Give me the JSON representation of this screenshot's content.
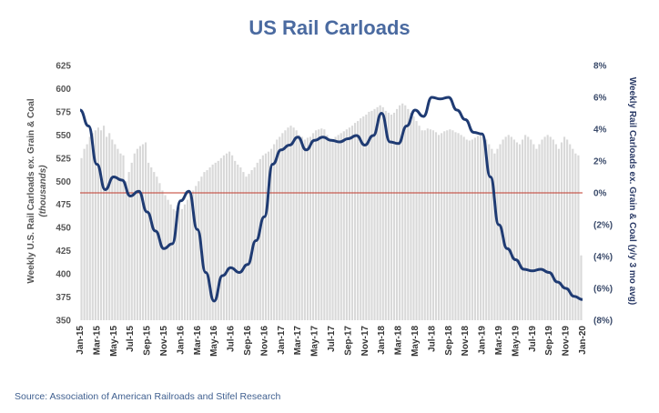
{
  "chart_data": {
    "type": "bar+line",
    "title": "US Rail Carloads",
    "source": "Source: Association of American Railroads and Stifel Research",
    "ylabel_left_line1": "Weekly U.S. Rail Carloads ex. Grain & Coal",
    "ylabel_left_line2": "(thousands)",
    "ylabel_right": "Weekly Rail Carloads ex. Grain & Coal (y/y 3 mo avg)",
    "ylim_left": [
      350,
      625
    ],
    "ylim_right": [
      -8,
      8
    ],
    "yticks_left": [
      "625",
      "600",
      "575",
      "550",
      "525",
      "500",
      "475",
      "450",
      "425",
      "400",
      "375",
      "350"
    ],
    "yticks_right": [
      "8%",
      "6%",
      "4%",
      "2%",
      "0%",
      "(2%)",
      "(4%)",
      "(6%)",
      "(8%)"
    ],
    "x_start": "2015-01",
    "x_end": "2020-01",
    "xticks": [
      "Jan-15",
      "Mar-15",
      "May-15",
      "Jul-15",
      "Sep-15",
      "Nov-15",
      "Jan-16",
      "Mar-16",
      "May-16",
      "Jul-16",
      "Sep-16",
      "Nov-16",
      "Jan-17",
      "Mar-17",
      "May-17",
      "Jul-17",
      "Sep-17",
      "Nov-17",
      "Jan-18",
      "Mar-18",
      "May-18",
      "Jul-18",
      "Sep-18",
      "Nov-18",
      "Jan-19",
      "Mar-19",
      "May-19",
      "Jul-19",
      "Sep-19",
      "Nov-19",
      "Jan-20"
    ],
    "zero_line": 0,
    "grid": false,
    "colors": {
      "bars": "#d9d9d9",
      "line": "#1f3b73",
      "zero_line": "#c0392b",
      "title": "#4a6aa0"
    },
    "series": [
      {
        "name": "Weekly U.S. Rail Carloads ex. Grain & Coal",
        "axis": "left",
        "kind": "bar",
        "values": [
          525,
          535,
          540,
          548,
          552,
          555,
          558,
          555,
          560,
          548,
          552,
          545,
          540,
          535,
          530,
          528,
          500,
          510,
          520,
          530,
          535,
          538,
          540,
          542,
          520,
          515,
          510,
          505,
          498,
          490,
          485,
          480,
          475,
          470,
          468,
          472,
          470,
          475,
          480,
          485,
          490,
          495,
          500,
          505,
          510,
          512,
          515,
          518,
          520,
          522,
          525,
          528,
          530,
          532,
          528,
          522,
          518,
          515,
          510,
          505,
          508,
          512,
          515,
          520,
          524,
          528,
          530,
          532,
          535,
          540,
          545,
          548,
          552,
          555,
          558,
          560,
          558,
          555,
          550,
          548,
          545,
          547,
          548,
          552,
          555,
          556,
          557,
          556,
          550,
          545,
          545,
          548,
          550,
          552,
          554,
          556,
          558,
          560,
          563,
          565,
          568,
          570,
          572,
          575,
          576,
          578,
          580,
          582,
          580,
          576,
          574,
          572,
          574,
          578,
          582,
          584,
          582,
          578,
          574,
          570,
          565,
          560,
          555,
          555,
          557,
          556,
          555,
          553,
          550,
          552,
          554,
          555,
          556,
          555,
          553,
          552,
          550,
          548,
          545,
          544,
          545,
          547,
          549,
          550,
          548,
          545,
          540,
          535,
          530,
          535,
          540,
          545,
          548,
          550,
          548,
          545,
          542,
          540,
          545,
          550,
          548,
          545,
          540,
          535,
          540,
          545,
          548,
          550,
          548,
          545,
          540,
          535,
          542,
          548,
          545,
          540,
          535,
          530,
          528,
          420
        ]
      },
      {
        "name": "Weekly Rail Carloads ex. Grain & Coal (y/y 3 mo avg)",
        "axis": "right",
        "kind": "line",
        "x": [
          "2015-01",
          "2015-02",
          "2015-03",
          "2015-04",
          "2015-05",
          "2015-06",
          "2015-07",
          "2015-08",
          "2015-09",
          "2015-10",
          "2015-11",
          "2015-12",
          "2016-01",
          "2016-02",
          "2016-03",
          "2016-04",
          "2016-05",
          "2016-06",
          "2016-07",
          "2016-08",
          "2016-09",
          "2016-10",
          "2016-11",
          "2016-12",
          "2017-01",
          "2017-02",
          "2017-03",
          "2017-04",
          "2017-05",
          "2017-06",
          "2017-07",
          "2017-08",
          "2017-09",
          "2017-10",
          "2017-11",
          "2017-12",
          "2018-01",
          "2018-02",
          "2018-03",
          "2018-04",
          "2018-05",
          "2018-06",
          "2018-07",
          "2018-08",
          "2018-09",
          "2018-10",
          "2018-11",
          "2018-12",
          "2019-01",
          "2019-02",
          "2019-03",
          "2019-04",
          "2019-05",
          "2019-06",
          "2019-07",
          "2019-08",
          "2019-09",
          "2019-10",
          "2019-11",
          "2019-12",
          "2020-01"
        ],
        "values": [
          5.2,
          4.2,
          1.8,
          0.2,
          1.0,
          0.8,
          -0.2,
          0.1,
          -1.2,
          -2.4,
          -3.5,
          -3.2,
          -0.5,
          0.1,
          -2.3,
          -5.0,
          -6.8,
          -5.2,
          -4.7,
          -5.0,
          -4.5,
          -3.0,
          -1.5,
          1.8,
          2.7,
          3.0,
          3.5,
          2.7,
          3.3,
          3.5,
          3.3,
          3.2,
          3.4,
          3.6,
          3.0,
          3.6,
          5.0,
          3.2,
          3.1,
          4.2,
          5.2,
          4.8,
          6.0,
          5.9,
          6.0,
          5.2,
          4.6,
          3.8,
          3.7,
          1.0,
          -2.0,
          -3.5,
          -4.2,
          -4.8,
          -4.9,
          -4.8,
          -5.0,
          -5.6,
          -6.0,
          -6.5,
          -6.7
        ]
      }
    ]
  }
}
